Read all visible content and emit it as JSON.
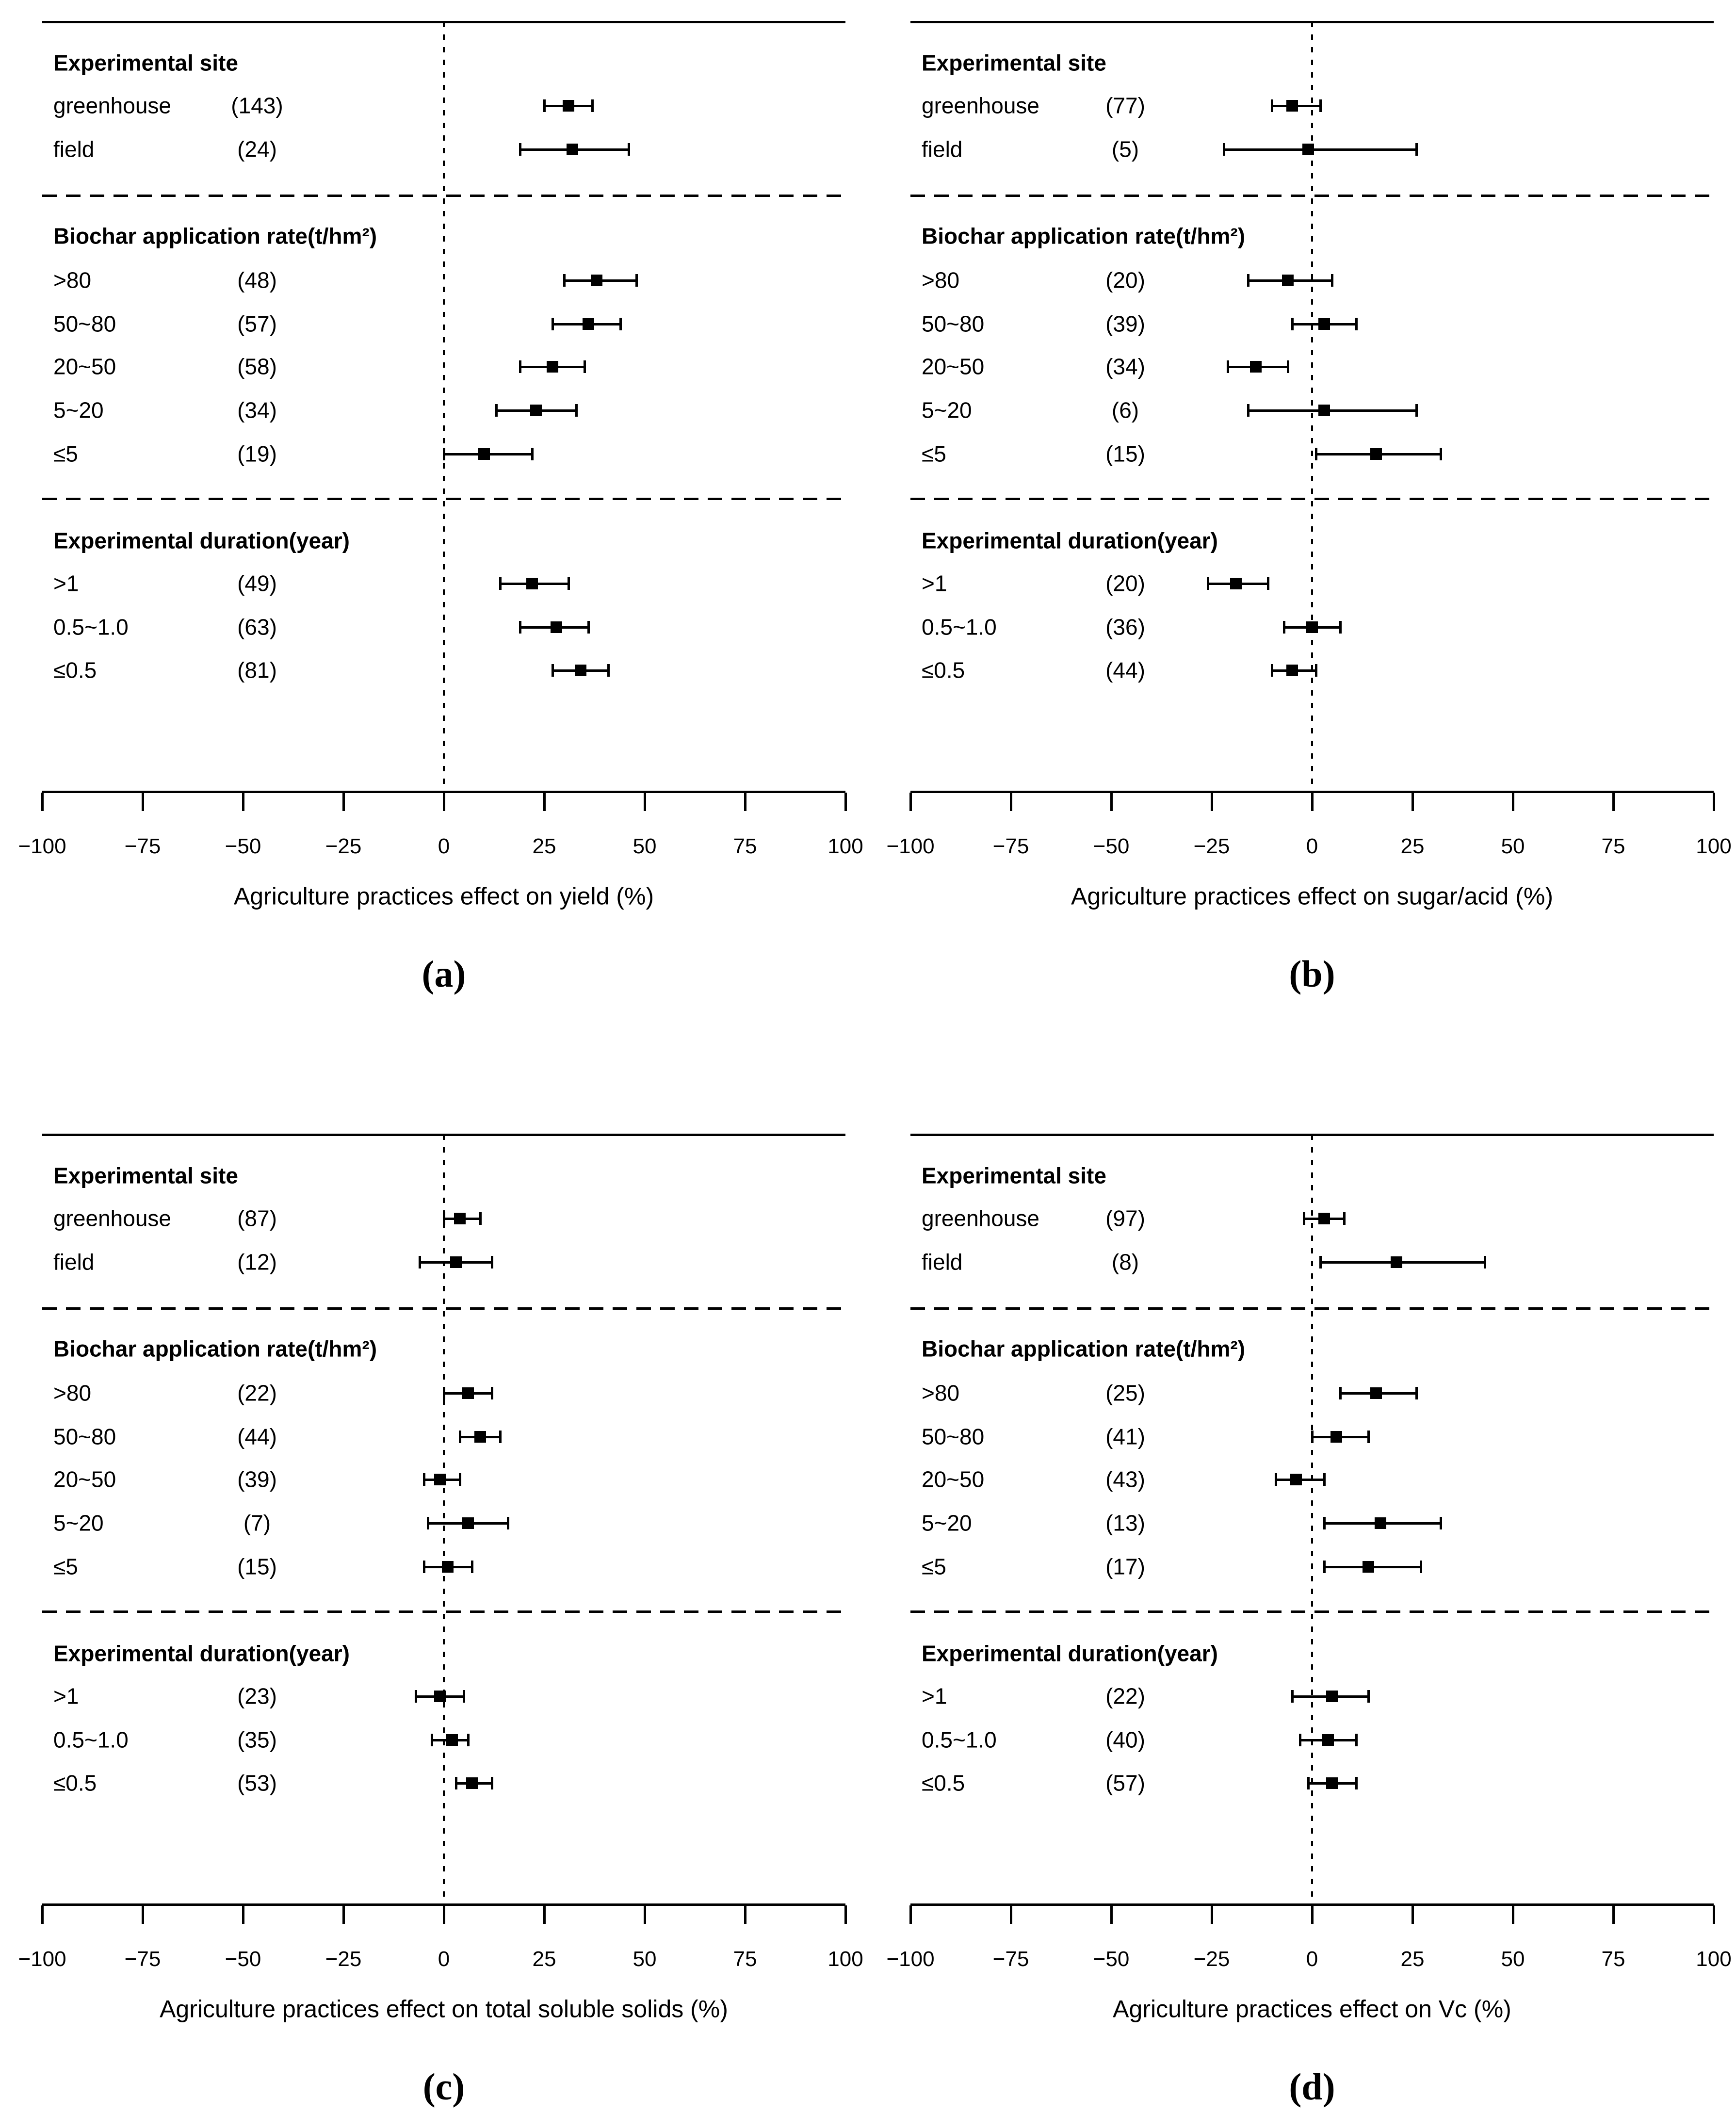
{
  "figure": {
    "background": "#ffffff",
    "ink_color": "#000000",
    "axis": {
      "min": -100,
      "max": 100,
      "tick_step": 25,
      "tick_labels": [
        "−100",
        "−75",
        "−50",
        "−25",
        "0",
        "25",
        "50",
        "75",
        "100"
      ]
    }
  },
  "chart_data": [
    {
      "type": "scatter",
      "variant": "forest-plot",
      "panel_label": "(a)",
      "xlabel": "Agriculture practices effect on yield (%)",
      "xlim": [
        -100,
        100
      ],
      "ticks": [
        -100,
        -75,
        -50,
        -25,
        0,
        25,
        50,
        75,
        100
      ],
      "reference_line_x": 0,
      "legend_position": "none",
      "grid": false,
      "groups": [
        {
          "heading": "Experimental site",
          "rows": [
            {
              "label": "greenhouse",
              "n": "(143)",
              "mean": 31,
              "ci_low": 25,
              "ci_high": 37
            },
            {
              "label": "field",
              "n": "(24)",
              "mean": 32,
              "ci_low": 19,
              "ci_high": 46
            }
          ]
        },
        {
          "heading": "Biochar application rate(t/hm²)",
          "rows": [
            {
              "label": ">80",
              "n": "(48)",
              "mean": 38,
              "ci_low": 30,
              "ci_high": 48
            },
            {
              "label": "50~80",
              "n": "(57)",
              "mean": 36,
              "ci_low": 27,
              "ci_high": 44
            },
            {
              "label": "20~50",
              "n": "(58)",
              "mean": 27,
              "ci_low": 19,
              "ci_high": 35
            },
            {
              "label": "5~20",
              "n": "(34)",
              "mean": 23,
              "ci_low": 13,
              "ci_high": 33
            },
            {
              "label": "≤5",
              "n": "(19)",
              "mean": 10,
              "ci_low": 0,
              "ci_high": 22
            }
          ]
        },
        {
          "heading": "Experimental duration(year)",
          "rows": [
            {
              "label": ">1",
              "n": "(49)",
              "mean": 22,
              "ci_low": 14,
              "ci_high": 31
            },
            {
              "label": "0.5~1.0",
              "n": "(63)",
              "mean": 28,
              "ci_low": 19,
              "ci_high": 36
            },
            {
              "label": "≤0.5",
              "n": "(81)",
              "mean": 34,
              "ci_low": 27,
              "ci_high": 41
            }
          ]
        }
      ]
    },
    {
      "type": "scatter",
      "variant": "forest-plot",
      "panel_label": "(b)",
      "xlabel": "Agriculture practices effect on sugar/acid (%)",
      "xlim": [
        -100,
        100
      ],
      "ticks": [
        -100,
        -75,
        -50,
        -25,
        0,
        25,
        50,
        75,
        100
      ],
      "reference_line_x": 0,
      "legend_position": "none",
      "grid": false,
      "groups": [
        {
          "heading": "Experimental site",
          "rows": [
            {
              "label": "greenhouse",
              "n": "(77)",
              "mean": -5,
              "ci_low": -10,
              "ci_high": 2
            },
            {
              "label": "field",
              "n": "(5)",
              "mean": -1,
              "ci_low": -22,
              "ci_high": 26
            }
          ]
        },
        {
          "heading": "Biochar application rate(t/hm²)",
          "rows": [
            {
              "label": ">80",
              "n": "(20)",
              "mean": -6,
              "ci_low": -16,
              "ci_high": 5
            },
            {
              "label": "50~80",
              "n": "(39)",
              "mean": 3,
              "ci_low": -5,
              "ci_high": 11
            },
            {
              "label": "20~50",
              "n": "(34)",
              "mean": -14,
              "ci_low": -21,
              "ci_high": -6
            },
            {
              "label": "5~20",
              "n": "(6)",
              "mean": 3,
              "ci_low": -16,
              "ci_high": 26
            },
            {
              "label": "≤5",
              "n": "(15)",
              "mean": 16,
              "ci_low": 1,
              "ci_high": 32
            }
          ]
        },
        {
          "heading": "Experimental duration(year)",
          "rows": [
            {
              "label": ">1",
              "n": "(20)",
              "mean": -19,
              "ci_low": -26,
              "ci_high": -11
            },
            {
              "label": "0.5~1.0",
              "n": "(36)",
              "mean": 0,
              "ci_low": -7,
              "ci_high": 7
            },
            {
              "label": "≤0.5",
              "n": "(44)",
              "mean": -5,
              "ci_low": -10,
              "ci_high": 1
            }
          ]
        }
      ]
    },
    {
      "type": "scatter",
      "variant": "forest-plot",
      "panel_label": "(c)",
      "xlabel": "Agriculture practices effect on total soluble solids (%)",
      "xlim": [
        -100,
        100
      ],
      "ticks": [
        -100,
        -75,
        -50,
        -25,
        0,
        25,
        50,
        75,
        100
      ],
      "reference_line_x": 0,
      "legend_position": "none",
      "grid": false,
      "groups": [
        {
          "heading": "Experimental site",
          "rows": [
            {
              "label": "greenhouse",
              "n": "(87)",
              "mean": 4,
              "ci_low": 0,
              "ci_high": 9
            },
            {
              "label": "field",
              "n": "(12)",
              "mean": 3,
              "ci_low": -6,
              "ci_high": 12
            }
          ]
        },
        {
          "heading": "Biochar application rate(t/hm²)",
          "rows": [
            {
              "label": ">80",
              "n": "(22)",
              "mean": 6,
              "ci_low": 0,
              "ci_high": 12
            },
            {
              "label": "50~80",
              "n": "(44)",
              "mean": 9,
              "ci_low": 4,
              "ci_high": 14
            },
            {
              "label": "20~50",
              "n": "(39)",
              "mean": -1,
              "ci_low": -5,
              "ci_high": 4
            },
            {
              "label": "5~20",
              "n": "(7)",
              "mean": 6,
              "ci_low": -4,
              "ci_high": 16
            },
            {
              "label": "≤5",
              "n": "(15)",
              "mean": 1,
              "ci_low": -5,
              "ci_high": 7
            }
          ]
        },
        {
          "heading": "Experimental duration(year)",
          "rows": [
            {
              "label": ">1",
              "n": "(23)",
              "mean": -1,
              "ci_low": -7,
              "ci_high": 5
            },
            {
              "label": "0.5~1.0",
              "n": "(35)",
              "mean": 2,
              "ci_low": -3,
              "ci_high": 6
            },
            {
              "label": "≤0.5",
              "n": "(53)",
              "mean": 7,
              "ci_low": 3,
              "ci_high": 12
            }
          ]
        }
      ]
    },
    {
      "type": "scatter",
      "variant": "forest-plot",
      "panel_label": "(d)",
      "xlabel": "Agriculture practices effect on Vc (%)",
      "xlim": [
        -100,
        100
      ],
      "ticks": [
        -100,
        -75,
        -50,
        -25,
        0,
        25,
        50,
        75,
        100
      ],
      "reference_line_x": 0,
      "legend_position": "none",
      "grid": false,
      "groups": [
        {
          "heading": "Experimental site",
          "rows": [
            {
              "label": "greenhouse",
              "n": "(97)",
              "mean": 3,
              "ci_low": -2,
              "ci_high": 8
            },
            {
              "label": "field",
              "n": "(8)",
              "mean": 21,
              "ci_low": 2,
              "ci_high": 43
            }
          ]
        },
        {
          "heading": "Biochar application rate(t/hm²)",
          "rows": [
            {
              "label": ">80",
              "n": "(25)",
              "mean": 16,
              "ci_low": 7,
              "ci_high": 26
            },
            {
              "label": "50~80",
              "n": "(41)",
              "mean": 6,
              "ci_low": 0,
              "ci_high": 14
            },
            {
              "label": "20~50",
              "n": "(43)",
              "mean": -4,
              "ci_low": -9,
              "ci_high": 3
            },
            {
              "label": "5~20",
              "n": "(13)",
              "mean": 17,
              "ci_low": 3,
              "ci_high": 32
            },
            {
              "label": "≤5",
              "n": "(17)",
              "mean": 14,
              "ci_low": 3,
              "ci_high": 27
            }
          ]
        },
        {
          "heading": "Experimental duration(year)",
          "rows": [
            {
              "label": ">1",
              "n": "(22)",
              "mean": 5,
              "ci_low": -5,
              "ci_high": 14
            },
            {
              "label": "0.5~1.0",
              "n": "(40)",
              "mean": 4,
              "ci_low": -3,
              "ci_high": 11
            },
            {
              "label": "≤0.5",
              "n": "(57)",
              "mean": 5,
              "ci_low": -1,
              "ci_high": 11
            }
          ]
        }
      ]
    }
  ]
}
